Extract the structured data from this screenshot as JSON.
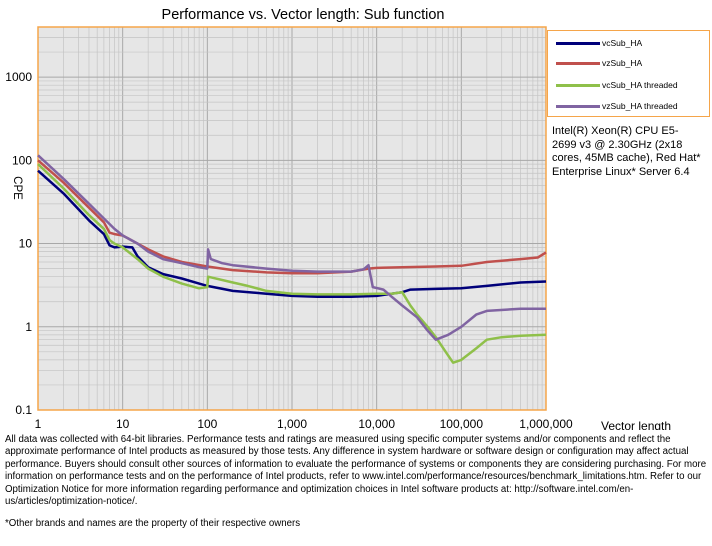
{
  "chart_data": {
    "type": "line",
    "title": "Performance vs. Vector length: Sub function",
    "xlabel": "Vector length",
    "ylabel": "CPE",
    "xscale": "log",
    "yscale": "log",
    "xlim": [
      1,
      1000000
    ],
    "ylim": [
      0.1,
      4000
    ],
    "grid": true,
    "legend_placement": "right",
    "x_ticks": [
      "1",
      "10",
      "100",
      "1,000",
      "10,000",
      "100,000",
      "1,000,000"
    ],
    "y_ticks": [
      "0.1",
      "1",
      "10",
      "100",
      "1000"
    ],
    "series": [
      {
        "name": "vcSub_HA",
        "color": "#00007a",
        "points": [
          [
            1,
            75
          ],
          [
            2,
            40
          ],
          [
            4,
            19
          ],
          [
            6,
            13
          ],
          [
            7,
            9.5
          ],
          [
            8,
            9.0
          ],
          [
            10,
            9.2
          ],
          [
            13,
            9
          ],
          [
            15,
            7
          ],
          [
            20,
            5.2
          ],
          [
            30,
            4.3
          ],
          [
            50,
            3.8
          ],
          [
            80,
            3.3
          ],
          [
            100,
            3.1
          ],
          [
            200,
            2.7
          ],
          [
            500,
            2.5
          ],
          [
            1000,
            2.35
          ],
          [
            2000,
            2.3
          ],
          [
            5000,
            2.3
          ],
          [
            10000,
            2.35
          ],
          [
            20000,
            2.6
          ],
          [
            25000,
            2.8
          ],
          [
            50000,
            2.85
          ],
          [
            100000,
            2.9
          ],
          [
            200000,
            3.1
          ],
          [
            500000,
            3.4
          ],
          [
            1000000,
            3.5
          ]
        ]
      },
      {
        "name": "vzSub_HA",
        "color": "#c0504d",
        "points": [
          [
            1,
            100
          ],
          [
            2,
            54
          ],
          [
            4,
            27
          ],
          [
            6,
            18
          ],
          [
            7,
            13.5
          ],
          [
            8,
            13
          ],
          [
            10,
            12.5
          ],
          [
            15,
            10
          ],
          [
            20,
            8.5
          ],
          [
            30,
            7
          ],
          [
            50,
            6
          ],
          [
            100,
            5.3
          ],
          [
            200,
            4.8
          ],
          [
            500,
            4.5
          ],
          [
            1000,
            4.4
          ],
          [
            2000,
            4.4
          ],
          [
            5000,
            4.6
          ],
          [
            8000,
            5.0
          ],
          [
            10000,
            5.1
          ],
          [
            20000,
            5.2
          ],
          [
            50000,
            5.3
          ],
          [
            100000,
            5.4
          ],
          [
            200000,
            6.0
          ],
          [
            500000,
            6.5
          ],
          [
            800000,
            6.8
          ],
          [
            1000000,
            7.8
          ]
        ]
      },
      {
        "name": "vcSub_HA threaded",
        "color": "#8fc04a",
        "points": [
          [
            1,
            90
          ],
          [
            2,
            46
          ],
          [
            4,
            22
          ],
          [
            6,
            15
          ],
          [
            7,
            11
          ],
          [
            8,
            10
          ],
          [
            10,
            9
          ],
          [
            15,
            6.5
          ],
          [
            20,
            5
          ],
          [
            30,
            4
          ],
          [
            50,
            3.3
          ],
          [
            80,
            2.9
          ],
          [
            100,
            3.0
          ],
          [
            102,
            4.0
          ],
          [
            200,
            3.4
          ],
          [
            300,
            3.1
          ],
          [
            500,
            2.7
          ],
          [
            1000,
            2.5
          ],
          [
            2000,
            2.45
          ],
          [
            5000,
            2.45
          ],
          [
            10000,
            2.5
          ],
          [
            15000,
            2.5
          ],
          [
            20000,
            2.6
          ],
          [
            25000,
            1.8
          ],
          [
            30000,
            1.4
          ],
          [
            40000,
            1.0
          ],
          [
            50000,
            0.75
          ],
          [
            70000,
            0.45
          ],
          [
            80000,
            0.37
          ],
          [
            100000,
            0.4
          ],
          [
            150000,
            0.55
          ],
          [
            200000,
            0.7
          ],
          [
            300000,
            0.75
          ],
          [
            500000,
            0.78
          ],
          [
            1000000,
            0.8
          ]
        ]
      },
      {
        "name": "vzSub_HA threaded",
        "color": "#8064a2",
        "points": [
          [
            1,
            115
          ],
          [
            2,
            60
          ],
          [
            4,
            30
          ],
          [
            6,
            20
          ],
          [
            8,
            15
          ],
          [
            10,
            12.5
          ],
          [
            15,
            10
          ],
          [
            20,
            8
          ],
          [
            30,
            6.5
          ],
          [
            50,
            5.8
          ],
          [
            80,
            5.2
          ],
          [
            100,
            5.0
          ],
          [
            102,
            8.5
          ],
          [
            110,
            6.5
          ],
          [
            150,
            5.8
          ],
          [
            200,
            5.5
          ],
          [
            500,
            5.0
          ],
          [
            1000,
            4.7
          ],
          [
            2000,
            4.6
          ],
          [
            5000,
            4.6
          ],
          [
            7000,
            4.9
          ],
          [
            8000,
            5.5
          ],
          [
            9000,
            3.0
          ],
          [
            12000,
            2.8
          ],
          [
            15000,
            2.3
          ],
          [
            20000,
            1.8
          ],
          [
            30000,
            1.3
          ],
          [
            40000,
            0.9
          ],
          [
            50000,
            0.7
          ],
          [
            70000,
            0.8
          ],
          [
            100000,
            1.0
          ],
          [
            150000,
            1.4
          ],
          [
            200000,
            1.55
          ],
          [
            500000,
            1.65
          ],
          [
            1000000,
            1.65
          ]
        ]
      }
    ]
  },
  "side_note": "Intel(R) Xeon(R) CPU E5-2699 v3 @ 2.30GHz (2x18 cores, 45MB cache), Red Hat* Enterprise Linux* Server 6.4",
  "footnote": "All data was collected with 64-bit libraries. Performance tests and ratings are measured using specific computer systems and/or components and reflect the approximate performance of Intel products as measured by those tests. Any difference in system hardware or software design or configuration may affect actual performance. Buyers should consult other sources of information to evaluate the performance of systems or components they are considering purchasing. For more information on performance tests and on the performance of Intel products, refer to www.intel.com/performance/resources/benchmark_limitations.htm. Refer to our Optimization Notice for more information regarding performance and optimization choices in Intel software products at: http://software.intel.com/en-us/articles/optimization-notice/.",
  "trademark": "*Other brands and names are the property of their respective owners"
}
